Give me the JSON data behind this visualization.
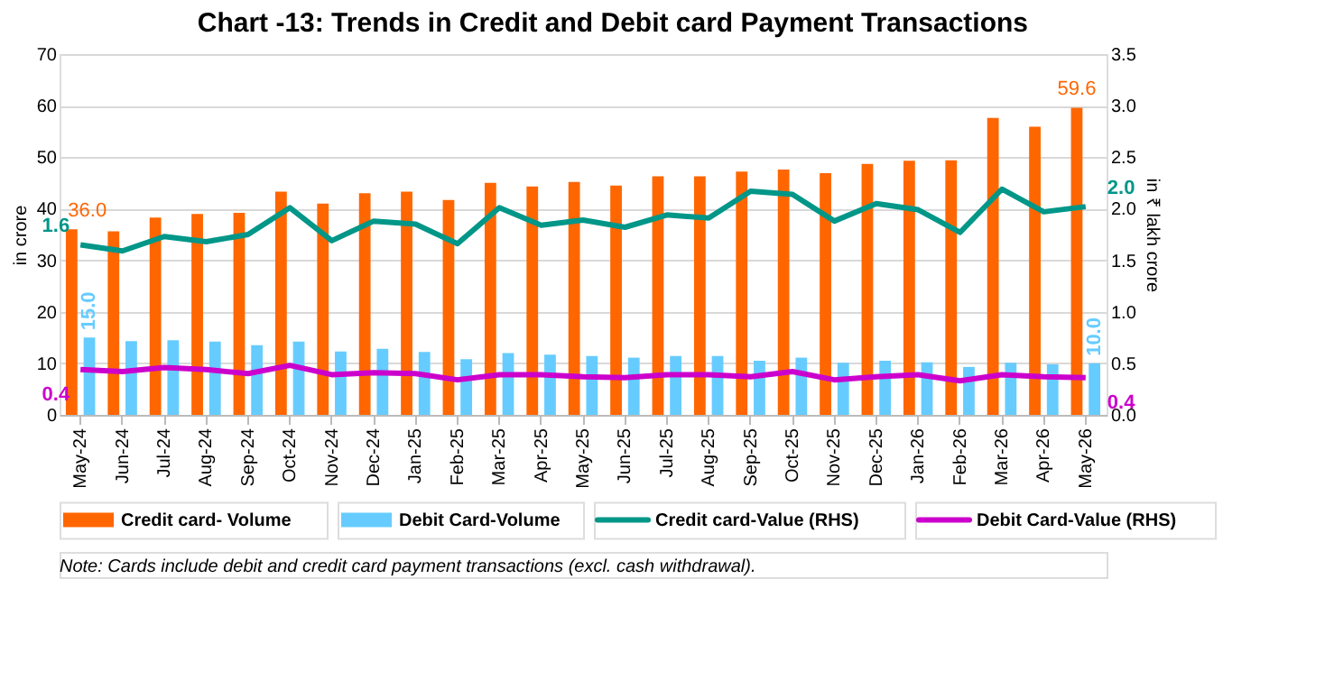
{
  "chart_data": {
    "type": "bar",
    "title": "Chart -13: Trends in Credit and Debit card Payment Transactions",
    "ylabel": "in crore",
    "y2label": "in ₹ lakh crore",
    "categories": [
      "May-24",
      "Jun-24",
      "Jul-24",
      "Aug-24",
      "Sep-24",
      "Oct-24",
      "Nov-24",
      "Dec-24",
      "Jan-25",
      "Feb-25",
      "Mar-25",
      "Apr-25",
      "May-25",
      "Jun-25",
      "Jul-25",
      "Aug-25",
      "Sep-25",
      "Oct-25",
      "Nov-25",
      "Dec-25",
      "Jan-26",
      "Feb-26",
      "Mar-26",
      "Apr-26",
      "May-26"
    ],
    "series": [
      {
        "name": "Credit card- Volume",
        "color": "#ff6600",
        "values": [
          36.0,
          35.6,
          38.3,
          39.0,
          39.2,
          43.3,
          41.0,
          43.0,
          43.3,
          41.7,
          45.0,
          44.3,
          45.2,
          44.5,
          46.3,
          46.3,
          47.2,
          47.6,
          46.9,
          48.7,
          49.3,
          49.4,
          57.6,
          55.9,
          59.6
        ],
        "value_labels": [
          "36.0",
          null,
          null,
          null,
          null,
          null,
          null,
          null,
          null,
          null,
          null,
          null,
          null,
          null,
          null,
          null,
          null,
          null,
          null,
          null,
          null,
          null,
          null,
          null,
          "59.6"
        ]
      },
      {
        "name": "Debit Card-Volume",
        "color": "#66ccff",
        "values": [
          15.0,
          14.3,
          14.5,
          14.2,
          13.5,
          14.2,
          12.3,
          12.8,
          12.2,
          10.8,
          12.0,
          11.7,
          11.4,
          11.1,
          11.4,
          11.4,
          10.5,
          11.1,
          10.1,
          10.5,
          10.2,
          9.3,
          10.1,
          9.8,
          10.0
        ],
        "value_labels": [
          "15.0",
          null,
          null,
          null,
          null,
          null,
          null,
          null,
          null,
          null,
          null,
          null,
          null,
          null,
          null,
          null,
          null,
          null,
          null,
          null,
          null,
          null,
          null,
          null,
          "10.0"
        ]
      },
      {
        "name": "Credit card-Value (RHS)",
        "type": "line",
        "axis": "y2",
        "color": "#009688",
        "values": [
          1.65,
          1.59,
          1.73,
          1.68,
          1.75,
          2.01,
          1.69,
          1.88,
          1.85,
          1.66,
          2.01,
          1.84,
          1.89,
          1.82,
          1.94,
          1.91,
          2.17,
          2.14,
          1.88,
          2.05,
          1.99,
          1.77,
          2.19,
          1.97,
          2.02
        ],
        "value_labels": [
          "1.6",
          null,
          null,
          null,
          null,
          null,
          null,
          null,
          null,
          null,
          null,
          null,
          null,
          null,
          null,
          null,
          null,
          null,
          null,
          null,
          null,
          null,
          null,
          null,
          "2.0"
        ]
      },
      {
        "name": "Debit Card-Value (RHS)",
        "type": "line",
        "axis": "y2",
        "color": "#cc00cc",
        "values": [
          0.44,
          0.42,
          0.46,
          0.44,
          0.4,
          0.48,
          0.39,
          0.41,
          0.4,
          0.34,
          0.39,
          0.39,
          0.37,
          0.36,
          0.39,
          0.39,
          0.37,
          0.42,
          0.34,
          0.37,
          0.39,
          0.33,
          0.39,
          0.37,
          0.36
        ],
        "value_labels": [
          "0.4",
          null,
          null,
          null,
          null,
          null,
          null,
          null,
          null,
          null,
          null,
          null,
          null,
          null,
          null,
          null,
          null,
          null,
          null,
          null,
          null,
          null,
          null,
          null,
          "0.4"
        ]
      }
    ],
    "ylim": [
      0,
      70
    ],
    "yticks": [
      0,
      10,
      20,
      30,
      40,
      50,
      60,
      70
    ],
    "y2lim": [
      0,
      3.5
    ],
    "y2ticks": [
      {
        "value": 0,
        "label": "0.0"
      },
      {
        "value": 0.5,
        "label": "0.5"
      },
      {
        "value": 1,
        "label": "1.0"
      },
      {
        "value": 1.5,
        "label": "1.5"
      },
      {
        "value": 2,
        "label": "2.0"
      },
      {
        "value": 2.5,
        "label": "2.5"
      },
      {
        "value": 3,
        "label": "3.0"
      },
      {
        "value": 3.5,
        "label": "3.5"
      }
    ],
    "grid": "y",
    "legend": "bottom",
    "marker": "none",
    "line_style": "solid",
    "annotations": [
      "Note: Cards include debit and credit card payment transactions (excl. cash withdrawal)."
    ]
  }
}
